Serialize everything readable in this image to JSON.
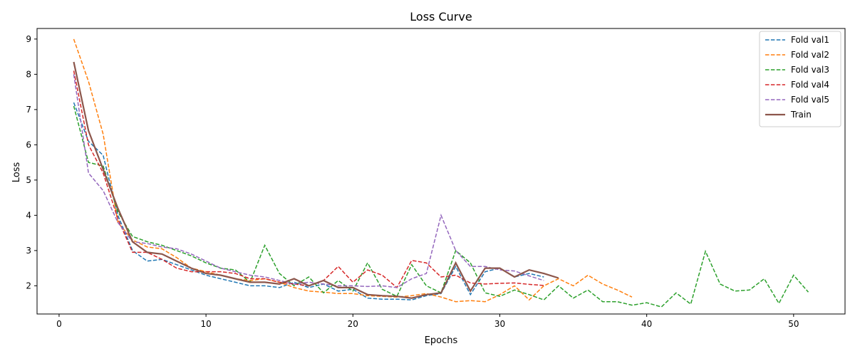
{
  "chart_data": {
    "type": "line",
    "title": "Loss Curve",
    "xlabel": "Epochs",
    "ylabel": "Loss",
    "xlim": [
      -1.5,
      53.5
    ],
    "ylim": [
      1.2,
      9.3
    ],
    "xticks": [
      0,
      10,
      20,
      30,
      40,
      50
    ],
    "yticks": [
      2,
      3,
      4,
      5,
      6,
      7,
      8,
      9
    ],
    "legend_position": "top-right",
    "series": [
      {
        "name": "Fold val1",
        "color": "#1f77b4",
        "style": "dashed",
        "x": [
          1,
          2,
          3,
          4,
          5,
          6,
          7,
          8,
          9,
          10,
          11,
          12,
          13,
          14,
          15,
          16,
          17,
          18,
          19,
          20,
          21,
          22,
          23,
          24,
          25,
          26,
          27,
          28,
          29,
          30,
          31,
          32,
          33
        ],
        "y": [
          7.2,
          6.1,
          5.7,
          4.0,
          3.0,
          2.7,
          2.75,
          2.6,
          2.45,
          2.3,
          2.2,
          2.1,
          2.0,
          2.0,
          1.95,
          2.1,
          1.95,
          2.05,
          1.85,
          1.9,
          1.65,
          1.62,
          1.62,
          1.6,
          1.72,
          1.78,
          2.55,
          1.75,
          2.4,
          2.5,
          2.25,
          2.35,
          2.25
        ]
      },
      {
        "name": "Fold val2",
        "color": "#ff7f0e",
        "style": "dashed",
        "x": [
          1,
          2,
          3,
          4,
          5,
          6,
          7,
          8,
          9,
          10,
          11,
          12,
          13,
          14,
          15,
          16,
          17,
          18,
          19,
          20,
          21,
          22,
          23,
          24,
          25,
          26,
          27,
          28,
          29,
          30,
          31,
          32,
          33,
          34,
          35,
          36,
          37,
          38,
          39
        ],
        "y": [
          9.0,
          7.8,
          6.3,
          3.8,
          3.3,
          3.1,
          3.05,
          2.8,
          2.5,
          2.4,
          2.3,
          2.2,
          2.15,
          2.2,
          2.1,
          1.95,
          1.85,
          1.82,
          1.78,
          1.78,
          1.72,
          1.7,
          1.68,
          1.72,
          1.78,
          1.68,
          1.55,
          1.58,
          1.55,
          1.75,
          2.0,
          1.6,
          2.0,
          2.2,
          2.0,
          2.3,
          2.05,
          1.88,
          1.68
        ]
      },
      {
        "name": "Fold val3",
        "color": "#2ca02c",
        "style": "dashed",
        "x": [
          1,
          2,
          3,
          4,
          5,
          6,
          7,
          8,
          9,
          10,
          11,
          12,
          13,
          14,
          15,
          16,
          17,
          18,
          19,
          20,
          21,
          22,
          23,
          24,
          25,
          26,
          27,
          28,
          29,
          30,
          31,
          32,
          33,
          34,
          35,
          36,
          37,
          38,
          39,
          40,
          41,
          42,
          43,
          44,
          45,
          46,
          47,
          48,
          49,
          50,
          51
        ],
        "y": [
          7.1,
          5.5,
          5.4,
          4.1,
          3.4,
          3.25,
          3.15,
          3.0,
          2.85,
          2.65,
          2.5,
          2.45,
          2.1,
          3.15,
          2.35,
          2.0,
          2.25,
          1.8,
          2.15,
          1.85,
          2.65,
          1.9,
          1.7,
          2.6,
          2.0,
          1.8,
          3.0,
          2.65,
          1.8,
          1.7,
          1.88,
          1.75,
          1.6,
          2.0,
          1.65,
          1.88,
          1.55,
          1.55,
          1.45,
          1.52,
          1.4,
          1.8,
          1.48,
          2.98,
          2.05,
          1.85,
          1.88,
          2.2,
          1.5,
          2.3,
          1.82
        ]
      },
      {
        "name": "Fold val4",
        "color": "#d62728",
        "style": "dashed",
        "x": [
          1,
          2,
          3,
          4,
          5,
          6,
          7,
          8,
          9,
          10,
          11,
          12,
          13,
          14,
          15,
          16,
          17,
          18,
          19,
          20,
          21,
          22,
          23,
          24,
          25,
          26,
          27,
          28,
          29,
          30,
          31,
          32,
          33
        ],
        "y": [
          8.1,
          6.0,
          5.2,
          3.9,
          2.95,
          2.95,
          2.75,
          2.5,
          2.4,
          2.4,
          2.4,
          2.35,
          2.2,
          2.2,
          2.1,
          2.05,
          2.0,
          2.15,
          2.55,
          2.1,
          2.45,
          2.3,
          1.95,
          2.72,
          2.65,
          2.25,
          2.3,
          2.08,
          2.05,
          2.07,
          2.08,
          2.04,
          2.01
        ]
      },
      {
        "name": "Fold val5",
        "color": "#9467bd",
        "style": "dashed",
        "x": [
          1,
          2,
          3,
          4,
          5,
          6,
          7,
          8,
          9,
          10,
          11,
          12,
          13,
          14,
          15,
          16,
          17,
          18,
          19,
          20,
          21,
          22,
          23,
          24,
          25,
          26,
          27,
          28,
          29,
          30,
          31,
          32,
          33
        ],
        "y": [
          8.0,
          5.2,
          4.7,
          3.8,
          3.25,
          3.2,
          3.1,
          3.05,
          2.9,
          2.7,
          2.5,
          2.4,
          2.3,
          2.25,
          2.15,
          2.05,
          2.1,
          2.05,
          2.0,
          2.0,
          1.98,
          2.0,
          1.95,
          2.2,
          2.35,
          4.0,
          3.0,
          2.55,
          2.55,
          2.45,
          2.42,
          2.28,
          2.15
        ]
      },
      {
        "name": "Train",
        "color": "#8c564b",
        "style": "solid",
        "x": [
          1,
          2,
          3,
          4,
          5,
          6,
          7,
          8,
          9,
          10,
          11,
          12,
          13,
          14,
          15,
          16,
          17,
          18,
          19,
          20,
          21,
          22,
          23,
          24,
          25,
          26,
          27,
          28,
          29,
          30,
          31,
          32,
          33,
          34
        ],
        "y": [
          8.35,
          6.4,
          5.3,
          4.2,
          3.25,
          2.95,
          2.9,
          2.7,
          2.5,
          2.35,
          2.3,
          2.2,
          2.1,
          2.1,
          2.05,
          2.2,
          2.0,
          2.15,
          1.95,
          1.95,
          1.75,
          1.72,
          1.7,
          1.65,
          1.75,
          1.8,
          2.65,
          1.85,
          2.5,
          2.5,
          2.25,
          2.45,
          2.35,
          2.22
        ]
      }
    ]
  }
}
